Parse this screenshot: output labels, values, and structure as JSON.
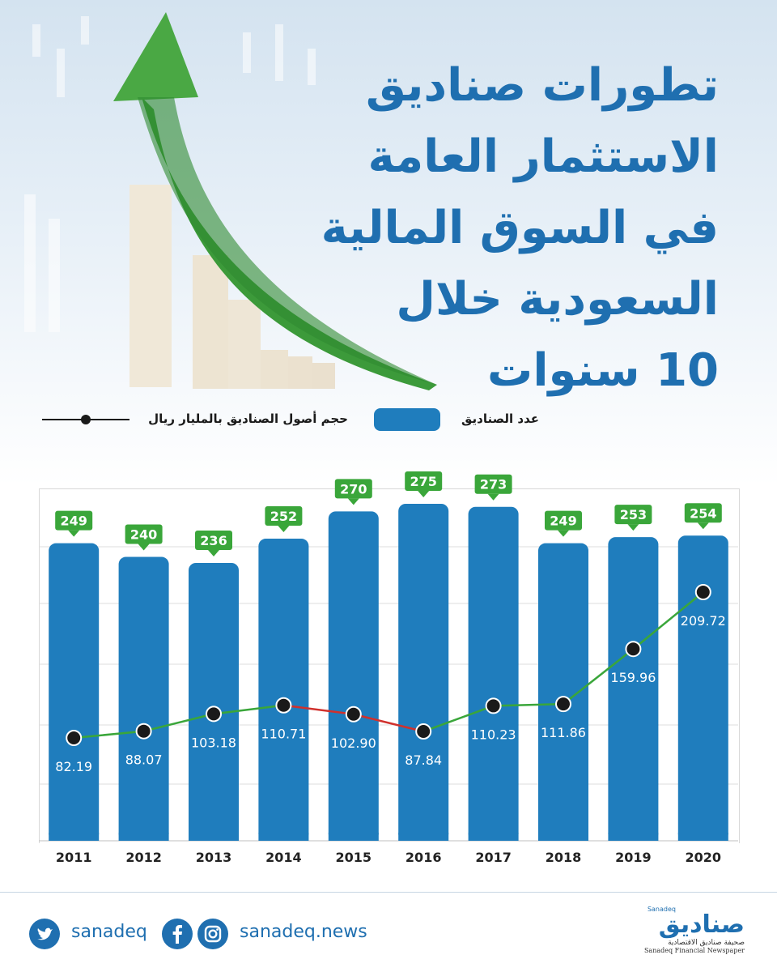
{
  "title_lines": [
    "تطورات صناديق",
    "الاستثمار العامة",
    "في السوق المالية",
    "السعودية خلال",
    "10 سنوات"
  ],
  "legend": {
    "bars_label": "عدد الصناديق",
    "line_label": "حجم أصول الصناديق بالمليار ريال"
  },
  "chart_data": {
    "type": "bar",
    "categories": [
      "2011",
      "2012",
      "2013",
      "2014",
      "2015",
      "2016",
      "2017",
      "2018",
      "2019",
      "2020"
    ],
    "series": [
      {
        "name": "عدد الصناديق",
        "type": "bar",
        "values": [
          249,
          240,
          236,
          252,
          270,
          275,
          273,
          249,
          253,
          254
        ]
      },
      {
        "name": "حجم أصول الصناديق بالمليار ريال",
        "type": "line",
        "values": [
          82.19,
          88.07,
          103.18,
          110.71,
          102.9,
          87.84,
          110.23,
          111.86,
          159.96,
          209.72
        ]
      }
    ],
    "bar_value_labels": [
      "249",
      "240",
      "236",
      "252",
      "270",
      "275",
      "273",
      "249",
      "253",
      "254"
    ],
    "line_value_labels": [
      "82.19",
      "88.07",
      "103.18",
      "110.71",
      "102.90",
      "87.84",
      "110.23",
      "111.86",
      "159.96",
      "209.72"
    ],
    "grid": true,
    "legend_position": "top",
    "colors": {
      "bar": "#1f7dbd",
      "label_bg": "#3aa63a",
      "line_up": "#3aa63a",
      "line_down": "#d0312d",
      "marker": "#1a1a1a"
    }
  },
  "footer": {
    "twitter_handle": "sanadeq",
    "website": "sanadeq.news",
    "brand_en_small": "Sanadeq",
    "brand_ar": "صناديق",
    "brand_sub_ar": "صحيفة صناديق الاقتصادية",
    "brand_sub_en": "Sanadeq Financial Newspaper"
  }
}
